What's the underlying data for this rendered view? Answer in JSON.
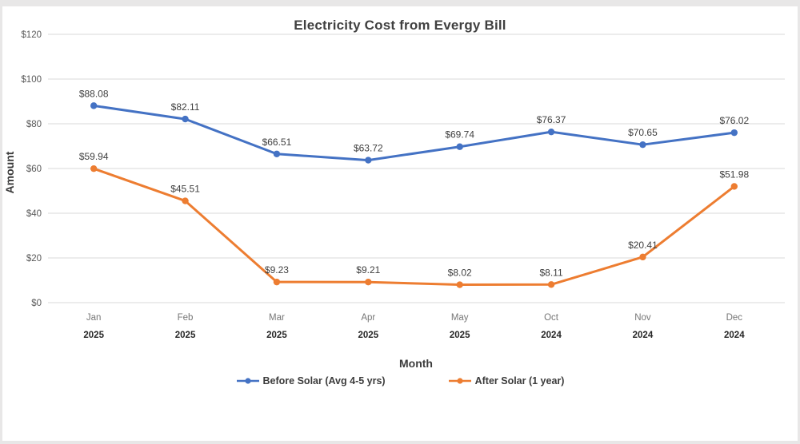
{
  "page": {
    "background_color": "#e8e7e7",
    "chart_background_color": "#ffffff"
  },
  "chart_data": {
    "type": "line",
    "title": "Electricity Cost from Evergy Bill",
    "xlabel": "Month",
    "ylabel": "Amount",
    "ylim": [
      0,
      120
    ],
    "ytick_step": 20,
    "ytick_labels": [
      "$0",
      "$20",
      "$40",
      "$60",
      "$80",
      "$100",
      "$120"
    ],
    "grid": true,
    "legend_position": "bottom",
    "data_labels": true,
    "label_prefix": "$",
    "gridline_color": "#d9d9d9",
    "categories": [
      {
        "month": "Jan",
        "year": "2025"
      },
      {
        "month": "Feb",
        "year": "2025"
      },
      {
        "month": "Mar",
        "year": "2025"
      },
      {
        "month": "Apr",
        "year": "2025"
      },
      {
        "month": "May",
        "year": "2025"
      },
      {
        "month": "Oct",
        "year": "2024"
      },
      {
        "month": "Nov",
        "year": "2024"
      },
      {
        "month": "Dec",
        "year": "2024"
      }
    ],
    "series": [
      {
        "name": "Before Solar (Avg 4-5 yrs)",
        "color": "#4472C4",
        "values": [
          88.08,
          82.11,
          66.51,
          63.72,
          69.74,
          76.37,
          70.65,
          76.02
        ],
        "labels": [
          "$88.08",
          "$82.11",
          "$66.51",
          "$63.72",
          "$69.74",
          "$76.37",
          "$70.65",
          "$76.02"
        ]
      },
      {
        "name": "After Solar (1 year)",
        "color": "#ED7D31",
        "values": [
          59.94,
          45.51,
          9.23,
          9.21,
          8.02,
          8.11,
          20.41,
          51.98
        ],
        "labels": [
          "$59.94",
          "$45.51",
          "$9.23",
          "$9.21",
          "$8.02",
          "$8.11",
          "$20.41",
          "$51.98"
        ]
      }
    ],
    "text_colors": {
      "title": "#404040",
      "data_label": "#404040",
      "ytick": "#595959",
      "month": "#767676",
      "year": "#262626"
    }
  }
}
